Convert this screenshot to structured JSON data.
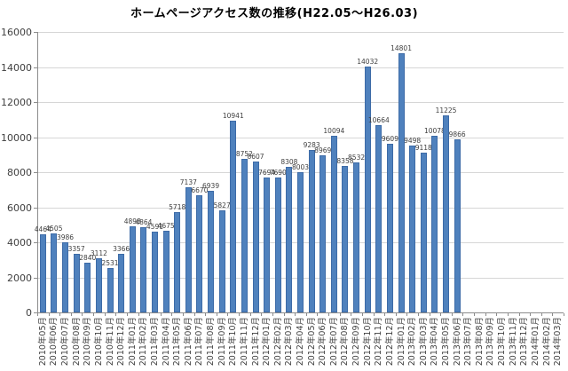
{
  "title": "ホームページアクセス数の推移(H22.05～H26.03)",
  "chart_data": {
    "type": "bar",
    "title": "ホームページアクセス数の推移(H22.05～H26.03)",
    "xlabel": "",
    "ylabel": "",
    "ylim": [
      0,
      16000
    ],
    "ytick_step": 2000,
    "yticks": [
      0,
      2000,
      4000,
      6000,
      8000,
      10000,
      12000,
      14000,
      16000
    ],
    "grid": true,
    "legend": "none",
    "data_labels": true,
    "bar_color": "#4f81bd",
    "bar_border_color": "#3d6ba7",
    "gridline_color": "#d6d6d6",
    "axis_color": "#8c8c8c",
    "categories": [
      "2010年05月",
      "2010年06月",
      "2010年07月",
      "2010年08月",
      "2010年09月",
      "2010年10月",
      "2010年11月",
      "2010年12月",
      "2011年01月",
      "2011年02月",
      "2011年03月",
      "2011年04月",
      "2011年05月",
      "2011年06月",
      "2011年07月",
      "2011年08月",
      "2011年09月",
      "2011年10月",
      "2011年11月",
      "2011年12月",
      "2012年01月",
      "2012年02月",
      "2012年03月",
      "2012年04月",
      "2012年05月",
      "2012年06月",
      "2012年07月",
      "2012年08月",
      "2012年09月",
      "2012年10月",
      "2012年11月",
      "2012年12月",
      "2013年01月",
      "2013年02月",
      "2013年03月",
      "2013年04月",
      "2013年05月",
      "2013年06月",
      "2013年07月",
      "2013年08月",
      "2013年09月",
      "2013年10月",
      "2013年11月",
      "2013年12月",
      "2014年01月",
      "2014年02月",
      "2014年03月"
    ],
    "values": [
      4464,
      4505,
      3986,
      3357,
      2840,
      3112,
      2531,
      3366,
      4898,
      4864,
      4591,
      4675,
      5718,
      7137,
      6670,
      6939,
      5827,
      10941,
      8752,
      8607,
      7694,
      7690,
      8308,
      8003,
      9283,
      8969,
      10094,
      8358,
      8532,
      14032,
      10664,
      9609,
      14801,
      9498,
      9118,
      10078,
      11225,
      9866,
      null,
      null,
      null,
      null,
      null,
      null,
      null,
      null,
      null
    ]
  }
}
